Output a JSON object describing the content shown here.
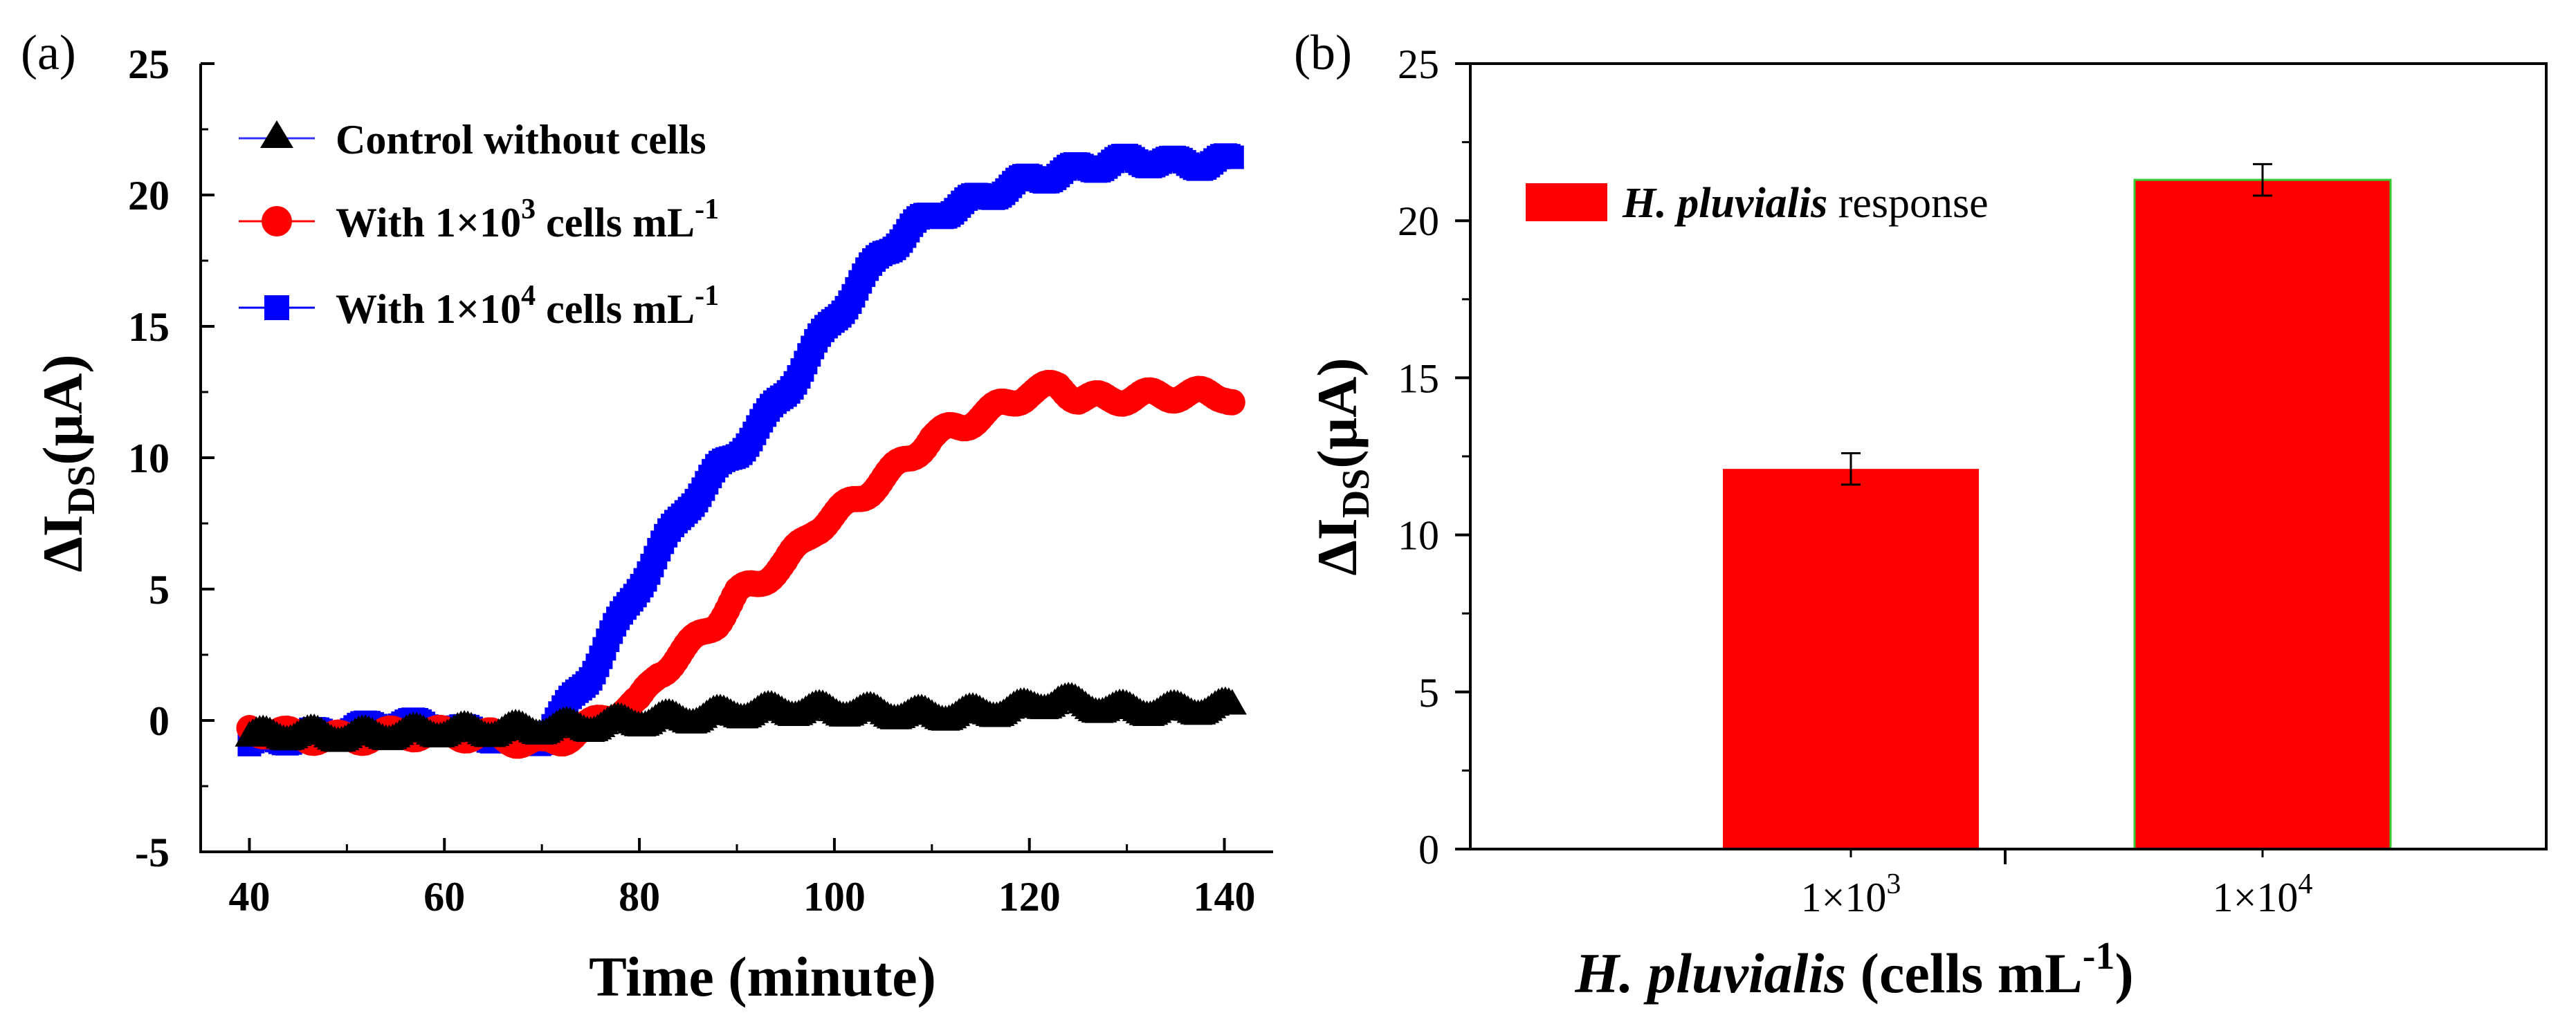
{
  "chart_data": [
    {
      "type": "scatter",
      "panel_label": "(a)",
      "xlabel": "Time (minute)",
      "ylabel": "ΔI",
      "ylabel_sub": "DS",
      "ylabel_unit": "(μA)",
      "xlim": [
        35,
        145
      ],
      "ylim": [
        -5,
        25
      ],
      "xticks": [
        "40",
        "60",
        "80",
        "100",
        "120",
        "140"
      ],
      "yticks": [
        "-5",
        "0",
        "5",
        "10",
        "15",
        "20",
        "25"
      ],
      "legend_position": "top-left",
      "series": [
        {
          "name": "Control without cells",
          "legend_text": "Control without cells",
          "marker": "triangle",
          "color": "#000000",
          "line_color": "#3333ff",
          "x": [
            40,
            45,
            50,
            55,
            60,
            65,
            70,
            75,
            80,
            85,
            90,
            95,
            100,
            105,
            110,
            115,
            120,
            123,
            125,
            130,
            135,
            140,
            141
          ],
          "y": [
            -0.6,
            -0.5,
            -0.6,
            -0.5,
            -0.4,
            -0.4,
            -0.3,
            -0.2,
            0.0,
            0.1,
            0.3,
            0.4,
            0.4,
            0.3,
            0.2,
            0.3,
            0.5,
            0.8,
            0.6,
            0.4,
            0.4,
            0.5,
            0.5
          ]
        },
        {
          "name": "With 1×10^3 cells mL^-1",
          "legend_text": "With 1×10",
          "legend_sup": "3",
          "legend_tail": " cells mL",
          "legend_tail_sup": "-1",
          "marker": "circle",
          "color": "#ff0000",
          "line_color": "#ff0000",
          "x": [
            40,
            45,
            50,
            55,
            60,
            65,
            70,
            72,
            75,
            78,
            80,
            82,
            85,
            88,
            90,
            92,
            95,
            98,
            100,
            103,
            105,
            108,
            110,
            113,
            115,
            118,
            120,
            123,
            125,
            128,
            130,
            135,
            140,
            141
          ],
          "y": [
            -0.3,
            -0.6,
            -0.7,
            -0.5,
            -0.5,
            -0.6,
            -0.9,
            -0.7,
            -0.2,
            0.4,
            0.7,
            1.8,
            2.8,
            3.8,
            4.8,
            5.2,
            6.0,
            7.3,
            7.8,
            8.6,
            9.2,
            10.1,
            10.8,
            11.2,
            11.6,
            12.1,
            12.5,
            12.7,
            12.3,
            12.2,
            12.3,
            12.4,
            12.4,
            12.2
          ]
        },
        {
          "name": "With 1×10^4 cells mL^-1",
          "legend_text": "With 1×10",
          "legend_sup": "4",
          "legend_tail": " cells mL",
          "legend_tail_sup": "-1",
          "marker": "square",
          "color": "#0000ff",
          "line_color": "#0000ff",
          "x": [
            40,
            45,
            50,
            55,
            60,
            65,
            70,
            72,
            75,
            78,
            80,
            83,
            85,
            88,
            90,
            93,
            95,
            98,
            100,
            103,
            105,
            108,
            110,
            113,
            115,
            118,
            120,
            123,
            125,
            128,
            130,
            133,
            135,
            138,
            140,
            141
          ],
          "y": [
            -0.9,
            -0.6,
            -0.4,
            -0.1,
            -0.3,
            -0.6,
            -0.7,
            0.2,
            1.8,
            3.8,
            5.2,
            7.0,
            8.2,
            9.5,
            10.2,
            11.5,
            12.5,
            14.2,
            15.3,
            16.8,
            17.8,
            18.8,
            19.2,
            19.6,
            19.9,
            20.3,
            20.6,
            20.8,
            21.0,
            21.2,
            21.3,
            21.3,
            21.2,
            21.2,
            21.3,
            21.3
          ]
        }
      ]
    },
    {
      "type": "bar",
      "panel_label": "(b)",
      "xlabel_italic": "H. pluvialis",
      "xlabel_rest": " (cells mL",
      "xlabel_sup": "-1",
      "xlabel_close": ")",
      "ylabel": "ΔI",
      "ylabel_sub": "DS",
      "ylabel_unit": "(μA)",
      "ylim": [
        0,
        25
      ],
      "yticks": [
        "0",
        "5",
        "10",
        "15",
        "20",
        "25"
      ],
      "categories": [
        {
          "base": "1×10",
          "sup": "3"
        },
        {
          "base": "1×10",
          "sup": "4"
        }
      ],
      "values": [
        12.1,
        21.3
      ],
      "errors": [
        0.5,
        0.5
      ],
      "bar_color": "#ff0000",
      "legend_italic": "H. pluvialis",
      "legend_rest": " response",
      "legend_position": "top-left"
    }
  ]
}
